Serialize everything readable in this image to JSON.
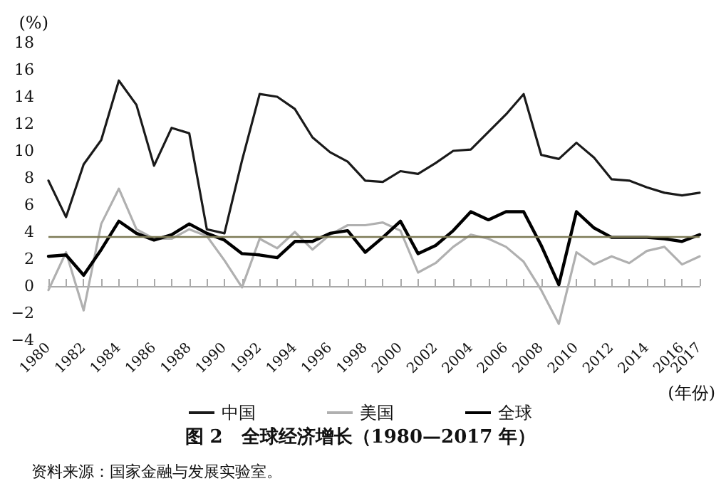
{
  "chart_data": {
    "type": "line",
    "title": "图 2　全球经济增长（1980—2017 年）",
    "ylabel": "(%)",
    "xlabel": "(年份)",
    "annotations": [
      "资料来源：国家金融与发展实验室。"
    ],
    "categories": [
      "1980",
      null,
      "1982",
      null,
      "1984",
      null,
      "1986",
      null,
      "1988",
      null,
      "1990",
      null,
      "1992",
      null,
      "1994",
      null,
      "1996",
      null,
      "1998",
      null,
      "2000",
      null,
      "2002",
      null,
      "2004",
      null,
      "2006",
      null,
      "2008",
      null,
      "2010",
      null,
      "2012",
      null,
      "2014",
      null,
      "2016",
      "2017"
    ],
    "series": [
      {
        "name": "中国",
        "color": "#1a1a1a",
        "values": [
          7.8,
          5.1,
          9.0,
          10.8,
          15.2,
          13.4,
          8.9,
          11.7,
          11.3,
          4.2,
          3.9,
          9.3,
          14.2,
          14.0,
          13.1,
          11.0,
          9.9,
          9.2,
          7.8,
          7.7,
          8.5,
          8.3,
          9.1,
          10.0,
          10.1,
          11.4,
          12.7,
          14.2,
          9.7,
          9.4,
          10.6,
          9.5,
          7.9,
          7.8,
          7.3,
          6.9,
          6.7,
          6.9
        ]
      },
      {
        "name": "美国",
        "color": "#b0b0b0",
        "values": [
          -0.3,
          2.5,
          -1.8,
          4.6,
          7.2,
          4.2,
          3.5,
          3.5,
          4.2,
          3.7,
          1.9,
          -0.1,
          3.5,
          2.8,
          4.0,
          2.7,
          3.8,
          4.5,
          4.5,
          4.7,
          4.1,
          1.0,
          1.7,
          2.9,
          3.8,
          3.5,
          2.9,
          1.8,
          -0.3,
          -2.8,
          2.5,
          1.6,
          2.2,
          1.7,
          2.6,
          2.9,
          1.6,
          2.2
        ]
      },
      {
        "name": "全球",
        "color": "#000000",
        "values": [
          2.2,
          2.3,
          0.8,
          2.7,
          4.8,
          3.9,
          3.4,
          3.8,
          4.6,
          3.9,
          3.4,
          2.4,
          2.3,
          2.1,
          3.3,
          3.3,
          3.9,
          4.1,
          2.5,
          3.6,
          4.8,
          2.4,
          3.0,
          4.1,
          5.5,
          4.9,
          5.5,
          5.5,
          3.0,
          0.1,
          5.5,
          4.3,
          3.6,
          3.6,
          3.6,
          3.5,
          3.3,
          3.8
        ]
      }
    ],
    "ylim": [
      -4,
      18
    ],
    "yticks": [
      -4,
      -2,
      0,
      2,
      4,
      6,
      8,
      10,
      12,
      14,
      16,
      18
    ],
    "ref_lines": [
      {
        "axis": "y",
        "value": 3.7,
        "label": null,
        "color": "#7d7a55"
      }
    ],
    "grid": false,
    "legend": "bottom",
    "marker": "none",
    "line_style": "solid"
  }
}
